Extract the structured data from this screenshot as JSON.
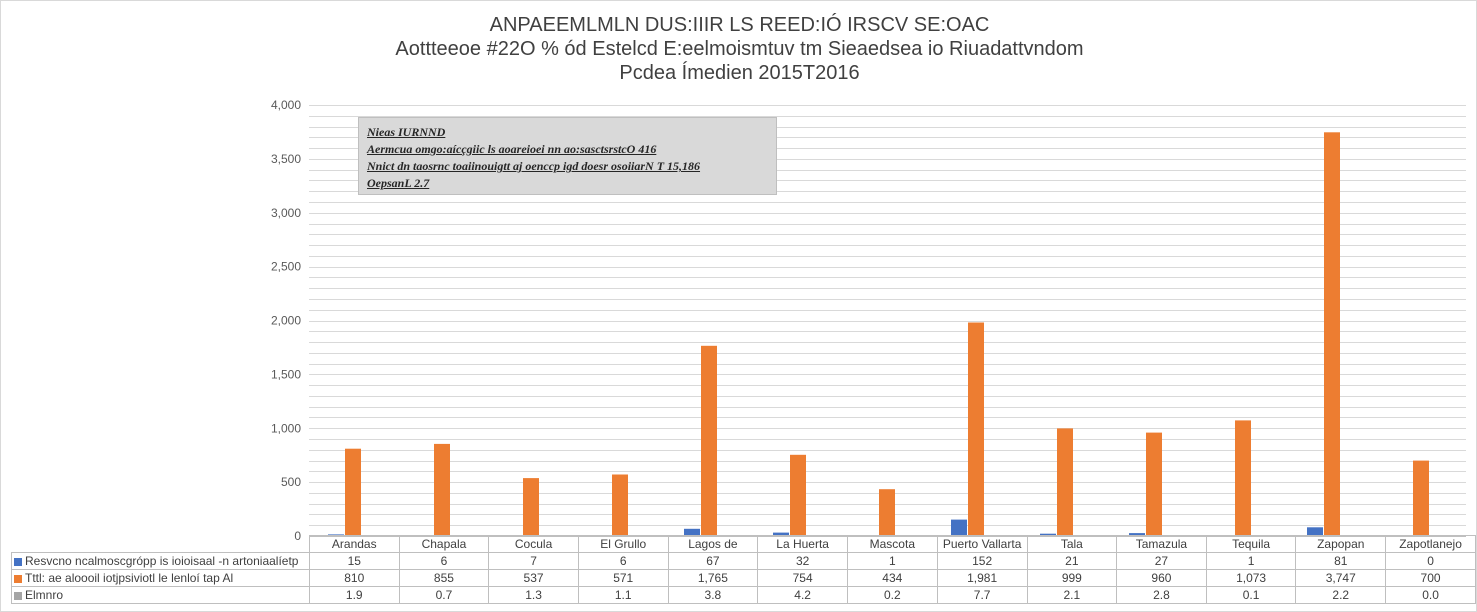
{
  "title": {
    "line1": "ANPAEEMLMLN DUS:IIIR LS REED:IÓ IRSCV SE:OAC",
    "line2": "Aottteeoe #22O  % ód Estelcd E:eelmoismtuv tm Sieaedsea io Riuadattvndom",
    "line3": "Pcdea Ímedien 2015T2016"
  },
  "annotation": {
    "line1": "Nieas  IURNND",
    "line2": "Aermcua omgo:aícçgiic  ls aoareioei  nn ao:sasctsrstcO 416",
    "line3": "Nnict dn taosrnc toaiinouigtt  aj oenccp igd  doesr osoiiarN  T 15,186",
    "line4": "OepsanL  2.7"
  },
  "colors": {
    "series1": "#4472c4",
    "series2": "#ed7d31",
    "series3": "#a5a5a5",
    "grid": "#d9d9d9"
  },
  "chart_data": {
    "type": "bar",
    "categories": [
      "Arandas",
      "Chapala",
      "Cocula",
      "El Grullo",
      "Lagos de",
      "La Huerta",
      "Mascota",
      "Puerto Vallarta",
      "Tala",
      "Tamazula",
      "Tequila",
      "Zapopan",
      "Zapotlanejo"
    ],
    "series": [
      {
        "name": "Resvcno ncalmoscgrópp is ioioisaal -n artoniaalíetp",
        "values": [
          15,
          6,
          7,
          6,
          67,
          32,
          1,
          152,
          21,
          27,
          1,
          81,
          0
        ],
        "labels": [
          "15",
          "6",
          "7",
          "6",
          "67",
          "32",
          "1",
          "152",
          "21",
          "27",
          "1",
          "81",
          "0"
        ]
      },
      {
        "name": "Tttl: ae aloooil iotjpsiviotl le lenloí tap Al",
        "values": [
          810,
          855,
          537,
          571,
          1765,
          754,
          434,
          1981,
          999,
          960,
          1073,
          3747,
          700
        ],
        "labels": [
          "810",
          "855",
          "537",
          "571",
          "1,765",
          "754",
          "434",
          "1,981",
          "999",
          "960",
          "1,073",
          "3,747",
          "700"
        ]
      },
      {
        "name": "Elmnro",
        "values": [
          1.9,
          0.7,
          1.3,
          1.1,
          3.8,
          4.2,
          0.2,
          7.7,
          2.1,
          2.8,
          0.1,
          2.2,
          0.0
        ],
        "labels": [
          "1.9",
          "0.7",
          "1.3",
          "1.1",
          "3.8",
          "4.2",
          "0.2",
          "7.7",
          "2.1",
          "2.8",
          "0.1",
          "2.2",
          "0.0"
        ]
      }
    ],
    "yticks": [
      "0",
      "500",
      "1,000",
      "1,500",
      "2,000",
      "2,500",
      "3,000",
      "3,500",
      "4,000"
    ],
    "ylim": [
      0,
      4000
    ],
    "grid": true,
    "legend": "data-table"
  }
}
